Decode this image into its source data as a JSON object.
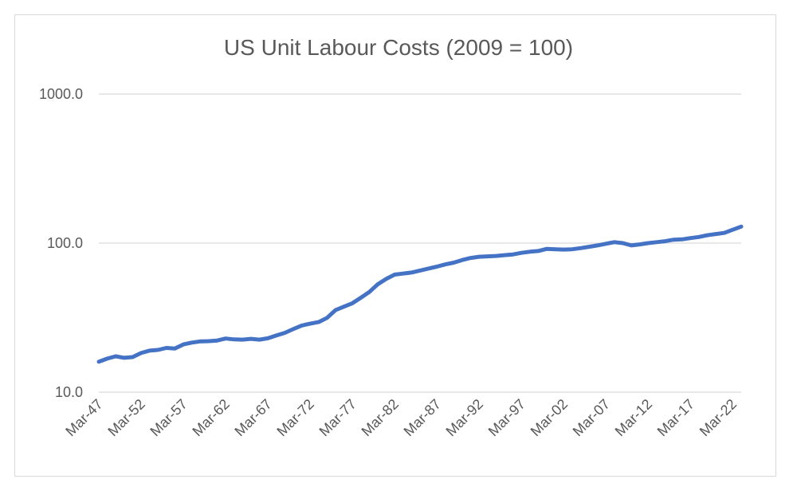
{
  "chart_data": {
    "type": "line",
    "title": "US Unit Labour Costs (2009 = 100)",
    "xlabel": "",
    "ylabel": "",
    "y_scale": "log",
    "ylim": [
      10,
      1000
    ],
    "y_ticks": [
      10,
      100,
      1000
    ],
    "y_tick_labels": [
      "10.0",
      "100.0",
      "1000.0"
    ],
    "x_tick_labels": [
      "Mar-47",
      "Mar-52",
      "Mar-57",
      "Mar-62",
      "Mar-67",
      "Mar-72",
      "Mar-77",
      "Mar-82",
      "Mar-87",
      "Mar-92",
      "Mar-97",
      "Mar-02",
      "Mar-07",
      "Mar-12",
      "Mar-17",
      "Mar-22"
    ],
    "x_range": [
      1947.0,
      2023.0
    ],
    "grid": true,
    "legend": "none",
    "line_color": "#4472c4",
    "series": [
      {
        "x": [
          1947.0,
          1948.0,
          1949.0,
          1950.0,
          1951.0,
          1952.0,
          1953.0,
          1954.0,
          1955.0,
          1956.0,
          1957.0,
          1958.0,
          1959.0,
          1960.0,
          1961.0,
          1962.0,
          1963.0,
          1964.0,
          1965.0,
          1966.0,
          1967.0,
          1968.0,
          1969.0,
          1970.0,
          1971.0,
          1972.0,
          1973.0,
          1974.0,
          1975.0,
          1976.0,
          1977.0,
          1978.0,
          1979.0,
          1980.0,
          1981.0,
          1982.0,
          1983.0,
          1984.0,
          1985.0,
          1986.0,
          1987.0,
          1988.0,
          1989.0,
          1990.0,
          1991.0,
          1992.0,
          1993.0,
          1994.0,
          1995.0,
          1996.0,
          1997.0,
          1998.0,
          1999.0,
          2000.0,
          2001.0,
          2002.0,
          2003.0,
          2004.0,
          2005.0,
          2006.0,
          2007.0,
          2008.0,
          2009.0,
          2010.0,
          2011.0,
          2012.0,
          2013.0,
          2014.0,
          2015.0,
          2016.0,
          2017.0,
          2018.0,
          2019.0,
          2020.0,
          2021.0,
          2022.0,
          2023.0
        ],
        "values": [
          16.0,
          16.8,
          17.4,
          17.0,
          17.2,
          18.3,
          19.0,
          19.2,
          19.8,
          19.6,
          20.9,
          21.5,
          21.9,
          22.0,
          22.2,
          22.9,
          22.6,
          22.5,
          22.8,
          22.5,
          23.0,
          24.0,
          25.0,
          26.5,
          28.0,
          28.8,
          29.5,
          31.5,
          35.5,
          37.5,
          39.5,
          43.0,
          47.0,
          53.0,
          57.5,
          61.5,
          62.5,
          63.5,
          65.5,
          67.5,
          69.5,
          72.0,
          74.0,
          77.0,
          79.5,
          81.0,
          81.5,
          82.0,
          83.0,
          84.0,
          86.0,
          87.5,
          88.5,
          91.5,
          91.0,
          90.5,
          91.0,
          92.5,
          94.5,
          96.5,
          99.0,
          101.5,
          100.0,
          96.5,
          98.0,
          100.0,
          101.5,
          103.0,
          105.5,
          106.0,
          108.0,
          110.0,
          113.0,
          115.0,
          117.0,
          123.0,
          129.0
        ]
      }
    ]
  }
}
